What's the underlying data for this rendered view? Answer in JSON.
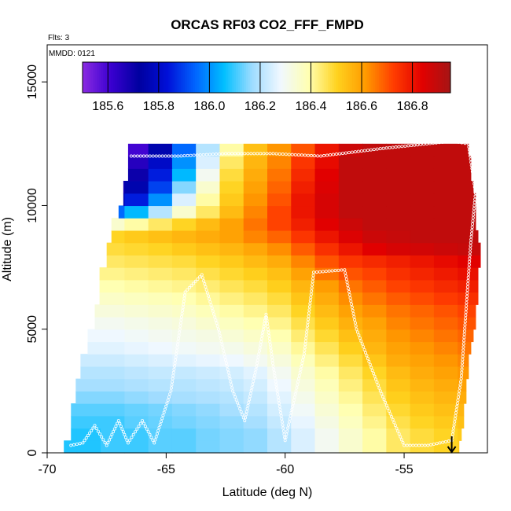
{
  "chart_data": {
    "type": "heatmap",
    "title": "ORCAS RF03 CO2_FFF_FMPD",
    "annotations": [
      "Flts: 3",
      "MMDD: 0121"
    ],
    "xlabel": "Latitude (deg N)",
    "ylabel": "Altitude (m)",
    "xlim": [
      -70,
      -51.5
    ],
    "ylim": [
      0,
      16500
    ],
    "x_ticks": [
      -70,
      -65,
      -60,
      -55
    ],
    "y_ticks": [
      0,
      5000,
      10000,
      15000
    ],
    "colorbar": {
      "ticks": [
        185.6,
        185.8,
        186.0,
        186.2,
        186.4,
        186.6,
        186.8
      ],
      "range": [
        185.5,
        186.95
      ],
      "colors": [
        "#8b2be2",
        "#3a00d0",
        "#0000a0",
        "#0010d8",
        "#0066ff",
        "#00bfff",
        "#9fdcff",
        "#f0f8ff",
        "#ffffb0",
        "#ffd21e",
        "#ff9a00",
        "#ff3c00",
        "#e20000",
        "#a51515"
      ],
      "position": "top"
    },
    "grid_x": [
      -69.25,
      -68.25,
      -67.25,
      -66.25,
      -65.25,
      -64.25,
      -63.25,
      -62.25,
      -61.25,
      -60.25,
      -59.25,
      -58.25,
      -57.25,
      -56.25,
      -55.25,
      -54.25,
      -53.25,
      -52.25
    ],
    "grid_y": [
      250,
      750,
      1250,
      1750,
      2250,
      2750,
      3250,
      3750,
      4250,
      4750,
      5250,
      5750,
      6250,
      6750,
      7250,
      7750,
      8250,
      8750,
      9250,
      9750,
      10250,
      10750,
      11250,
      11750,
      12250
    ],
    "z_rows": [
      [
        186.08,
        186.08,
        186.1,
        186.1,
        186.12,
        186.12,
        186.14,
        186.15,
        186.16,
        186.2,
        186.25,
        186.3,
        186.35,
        186.4,
        186.45,
        186.48,
        186.5,
        186.52
      ],
      [
        186.08,
        186.08,
        186.1,
        186.1,
        186.12,
        186.12,
        186.14,
        186.15,
        186.16,
        186.2,
        186.25,
        186.3,
        186.35,
        186.4,
        186.45,
        186.48,
        186.5,
        186.52
      ],
      [
        186.1,
        186.1,
        186.1,
        186.12,
        186.13,
        186.14,
        186.15,
        186.16,
        186.18,
        186.22,
        186.27,
        186.32,
        186.37,
        186.42,
        186.47,
        186.5,
        186.52,
        186.54
      ],
      [
        186.12,
        186.12,
        186.12,
        186.13,
        186.14,
        186.15,
        186.16,
        186.18,
        186.2,
        186.24,
        186.29,
        186.34,
        186.39,
        186.44,
        186.49,
        186.52,
        186.54,
        186.56
      ],
      [
        186.15,
        186.15,
        186.15,
        186.16,
        186.17,
        186.18,
        186.19,
        186.2,
        186.22,
        186.26,
        186.31,
        186.36,
        186.41,
        186.46,
        186.51,
        186.54,
        186.56,
        186.58
      ],
      [
        186.18,
        186.18,
        186.18,
        186.19,
        186.2,
        186.2,
        186.21,
        186.22,
        186.24,
        186.28,
        186.33,
        186.38,
        186.43,
        186.48,
        186.53,
        186.56,
        186.58,
        186.6
      ],
      [
        186.2,
        186.2,
        186.2,
        186.21,
        186.22,
        186.22,
        186.23,
        186.24,
        186.26,
        186.3,
        186.35,
        186.4,
        186.45,
        186.5,
        186.55,
        186.58,
        186.6,
        186.62
      ],
      [
        186.23,
        186.23,
        186.23,
        186.24,
        186.25,
        186.26,
        186.27,
        186.28,
        186.3,
        186.33,
        186.38,
        186.43,
        186.48,
        186.53,
        186.58,
        186.6,
        186.62,
        186.64
      ],
      [
        186.26,
        186.26,
        186.26,
        186.27,
        186.28,
        186.29,
        186.3,
        186.31,
        186.33,
        186.36,
        186.41,
        186.46,
        186.51,
        186.56,
        186.6,
        186.62,
        186.64,
        186.66
      ],
      [
        186.28,
        186.28,
        186.28,
        186.29,
        186.3,
        186.31,
        186.32,
        186.34,
        186.36,
        186.39,
        186.44,
        186.49,
        186.54,
        186.58,
        186.62,
        186.64,
        186.66,
        186.68
      ],
      [
        186.3,
        186.3,
        186.3,
        186.31,
        186.32,
        186.33,
        186.35,
        186.37,
        186.39,
        186.42,
        186.47,
        186.52,
        186.57,
        186.6,
        186.64,
        186.66,
        186.68,
        186.7
      ],
      [
        186.33,
        186.33,
        186.33,
        186.34,
        186.35,
        186.36,
        186.38,
        186.4,
        186.42,
        186.45,
        186.5,
        186.55,
        186.6,
        186.63,
        186.66,
        186.68,
        186.7,
        186.72
      ],
      [
        186.36,
        186.36,
        186.36,
        186.37,
        186.38,
        186.39,
        186.41,
        186.43,
        186.45,
        186.48,
        186.53,
        186.58,
        186.63,
        186.66,
        186.69,
        186.71,
        186.73,
        186.75
      ],
      [
        186.39,
        186.39,
        186.39,
        186.4,
        186.41,
        186.42,
        186.44,
        186.46,
        186.48,
        186.51,
        186.56,
        186.61,
        186.66,
        186.69,
        186.72,
        186.74,
        186.76,
        186.78
      ],
      [
        186.42,
        186.42,
        186.42,
        186.43,
        186.44,
        186.45,
        186.47,
        186.49,
        186.51,
        186.54,
        186.6,
        186.66,
        186.7,
        186.72,
        186.75,
        186.77,
        186.79,
        186.81
      ],
      [
        186.45,
        186.45,
        186.45,
        186.46,
        186.47,
        186.48,
        186.5,
        186.52,
        186.55,
        186.58,
        186.64,
        186.7,
        186.74,
        186.76,
        186.78,
        186.8,
        186.82,
        186.84
      ],
      [
        186.48,
        186.48,
        186.48,
        186.49,
        186.5,
        186.52,
        186.54,
        186.56,
        186.59,
        186.63,
        186.69,
        186.75,
        186.8,
        186.84,
        186.86,
        186.87,
        186.88,
        186.89
      ],
      [
        186.5,
        186.5,
        186.5,
        186.52,
        186.54,
        186.56,
        186.58,
        186.6,
        186.64,
        186.68,
        186.74,
        186.8,
        186.85,
        186.88,
        186.89,
        186.9,
        186.9,
        186.9
      ],
      [
        186.3,
        186.3,
        186.35,
        186.4,
        186.45,
        186.5,
        186.55,
        186.6,
        186.66,
        186.72,
        186.78,
        186.84,
        186.88,
        186.9,
        186.9,
        186.9,
        186.9,
        186.9
      ],
      [
        185.9,
        185.9,
        185.95,
        186.05,
        186.2,
        186.35,
        186.45,
        186.55,
        186.64,
        186.72,
        186.8,
        186.86,
        186.9,
        186.9,
        186.9,
        186.9,
        186.9,
        186.9
      ],
      [
        185.7,
        185.7,
        185.75,
        185.85,
        186.0,
        186.25,
        186.4,
        186.52,
        186.62,
        186.7,
        186.8,
        186.86,
        186.9,
        186.9,
        186.9,
        186.9,
        186.9,
        186.9
      ],
      [
        185.65,
        185.65,
        185.68,
        185.75,
        185.9,
        186.15,
        186.35,
        186.5,
        186.6,
        186.68,
        186.78,
        186.85,
        186.9,
        186.9,
        186.9,
        186.9,
        186.9,
        186.9
      ],
      [
        185.6,
        185.6,
        185.62,
        185.7,
        185.85,
        186.05,
        186.3,
        186.48,
        186.58,
        186.66,
        186.76,
        186.84,
        186.9,
        186.9,
        186.9,
        186.9,
        186.9,
        186.9
      ],
      [
        185.55,
        185.55,
        185.58,
        185.65,
        185.8,
        186.0,
        186.25,
        186.45,
        186.56,
        186.64,
        186.74,
        186.82,
        186.9,
        186.9,
        186.9,
        186.9,
        186.9,
        186.9
      ],
      [
        185.5,
        185.5,
        185.55,
        185.6,
        185.75,
        185.95,
        186.2,
        186.4,
        186.54,
        186.62,
        186.7,
        186.8,
        186.88,
        186.9,
        186.9,
        186.9,
        186.9,
        186.9
      ]
    ],
    "profile_bounds": [
      {
        "alt": 250,
        "lat_min": -69.3,
        "lat_max": -52.7
      },
      {
        "alt": 750,
        "lat_min": -69.0,
        "lat_max": -52.6
      },
      {
        "alt": 1250,
        "lat_min": -69.0,
        "lat_max": -52.5
      },
      {
        "alt": 1750,
        "lat_min": -69.0,
        "lat_max": -52.5
      },
      {
        "alt": 2250,
        "lat_min": -68.8,
        "lat_max": -52.4
      },
      {
        "alt": 2750,
        "lat_min": -68.8,
        "lat_max": -52.4
      },
      {
        "alt": 3250,
        "lat_min": -68.6,
        "lat_max": -52.3
      },
      {
        "alt": 3750,
        "lat_min": -68.6,
        "lat_max": -52.3
      },
      {
        "alt": 4250,
        "lat_min": -68.3,
        "lat_max": -52.2
      },
      {
        "alt": 4750,
        "lat_min": -68.3,
        "lat_max": -52.1
      },
      {
        "alt": 5250,
        "lat_min": -68.0,
        "lat_max": -52.0
      },
      {
        "alt": 5750,
        "lat_min": -68.0,
        "lat_max": -52.0
      },
      {
        "alt": 6250,
        "lat_min": -67.8,
        "lat_max": -51.9
      },
      {
        "alt": 6750,
        "lat_min": -67.8,
        "lat_max": -51.9
      },
      {
        "alt": 7250,
        "lat_min": -67.8,
        "lat_max": -51.9
      },
      {
        "alt": 7750,
        "lat_min": -67.5,
        "lat_max": -51.8
      },
      {
        "alt": 8250,
        "lat_min": -67.5,
        "lat_max": -51.8
      },
      {
        "alt": 8750,
        "lat_min": -67.3,
        "lat_max": -51.9
      },
      {
        "alt": 9250,
        "lat_min": -67.3,
        "lat_max": -52.0
      },
      {
        "alt": 9750,
        "lat_min": -67.0,
        "lat_max": -52.0
      },
      {
        "alt": 10250,
        "lat_min": -66.8,
        "lat_max": -52.0
      },
      {
        "alt": 10750,
        "lat_min": -66.8,
        "lat_max": -52.1
      },
      {
        "alt": 11250,
        "lat_min": -66.6,
        "lat_max": -52.2
      },
      {
        "alt": 11750,
        "lat_min": -66.6,
        "lat_max": -52.2
      },
      {
        "alt": 12250,
        "lat_min": -66.6,
        "lat_max": -52.3
      }
    ],
    "flight_track": [
      {
        "lat": -69.0,
        "alt": 300
      },
      {
        "lat": -68.5,
        "alt": 400
      },
      {
        "lat": -68.0,
        "alt": 1100
      },
      {
        "lat": -67.5,
        "alt": 300
      },
      {
        "lat": -67.0,
        "alt": 1300
      },
      {
        "lat": -66.6,
        "alt": 400
      },
      {
        "lat": -66.0,
        "alt": 1300
      },
      {
        "lat": -65.5,
        "alt": 400
      },
      {
        "lat": -64.8,
        "alt": 2500
      },
      {
        "lat": -64.5,
        "alt": 4500
      },
      {
        "lat": -64.2,
        "alt": 6500
      },
      {
        "lat": -63.5,
        "alt": 7200
      },
      {
        "lat": -62.8,
        "alt": 5000
      },
      {
        "lat": -62.2,
        "alt": 2500
      },
      {
        "lat": -61.7,
        "alt": 1300
      },
      {
        "lat": -61.2,
        "alt": 3500
      },
      {
        "lat": -60.8,
        "alt": 5600
      },
      {
        "lat": -60.5,
        "alt": 3500
      },
      {
        "lat": -60.0,
        "alt": 500
      },
      {
        "lat": -59.2,
        "alt": 4000
      },
      {
        "lat": -58.8,
        "alt": 7300
      },
      {
        "lat": -57.5,
        "alt": 7400
      },
      {
        "lat": -57.0,
        "alt": 5000
      },
      {
        "lat": -56.0,
        "alt": 2500
      },
      {
        "lat": -55.0,
        "alt": 300
      },
      {
        "lat": -54.0,
        "alt": 300
      },
      {
        "lat": -53.0,
        "alt": 500
      },
      {
        "lat": -52.6,
        "alt": 3000
      },
      {
        "lat": -52.2,
        "alt": 8500
      },
      {
        "lat": -52.0,
        "alt": 10500
      },
      {
        "lat": -52.3,
        "alt": 12500
      },
      {
        "lat": -53.0,
        "alt": 12600
      },
      {
        "lat": -56.0,
        "alt": 12300
      },
      {
        "lat": -58.5,
        "alt": 12000
      },
      {
        "lat": -60.5,
        "alt": 12100
      },
      {
        "lat": -62.5,
        "alt": 12100
      },
      {
        "lat": -64.5,
        "alt": 12000
      },
      {
        "lat": -66.6,
        "alt": 12000
      }
    ],
    "marker": {
      "lat": -53.0,
      "alt": 0,
      "label": "arrow"
    }
  }
}
